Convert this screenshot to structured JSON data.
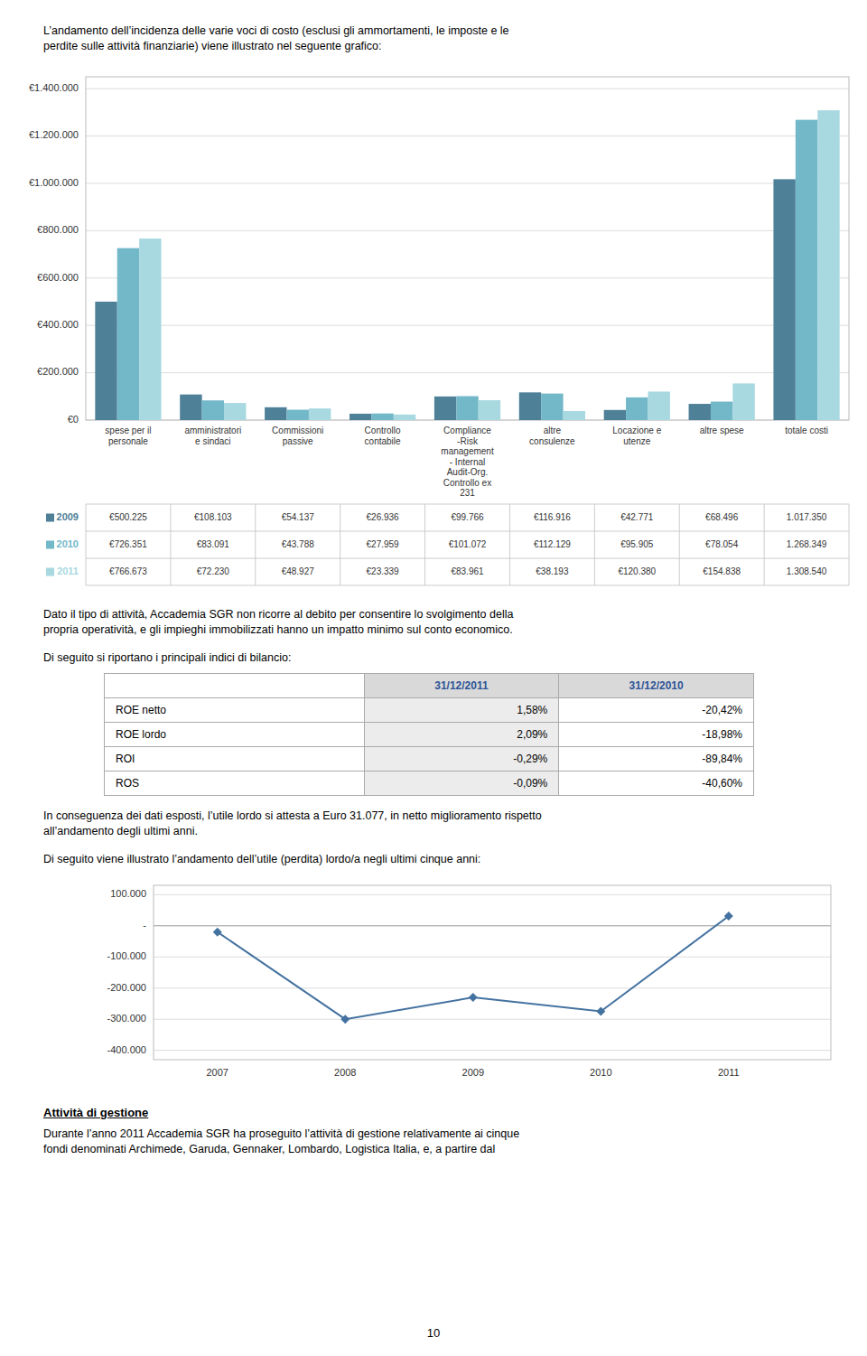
{
  "chart_data": [
    {
      "type": "bar",
      "categories": [
        "spese per il\npersonale",
        "amministratori\ne sindaci",
        "Commissioni\npassive",
        "Controllo\ncontabile",
        "Compliance\n-Risk\nmanagement\n- Internal\nAudit-Org.\nControllo ex\n231",
        "altre\nconsulenze",
        "Locazione e\nutenze",
        "altre spese",
        "totale costi"
      ],
      "series": [
        {
          "name": "2009",
          "color": "#4e8098",
          "values": [
            500225,
            108103,
            54137,
            26936,
            99766,
            116916,
            42771,
            68496,
            1017350
          ],
          "value_labels": [
            "€500.225",
            "€108.103",
            "€54.137",
            "€26.936",
            "€99.766",
            "€116.916",
            "€42.771",
            "€68.496",
            "1.017.350"
          ]
        },
        {
          "name": "2010",
          "color": "#72b8c8",
          "values": [
            726351,
            83091,
            43788,
            27959,
            101072,
            112129,
            95905,
            78054,
            1268349
          ],
          "value_labels": [
            "€726.351",
            "€83.091",
            "€43.788",
            "€27.959",
            "€101.072",
            "€112.129",
            "€95.905",
            "€78.054",
            "1.268.349"
          ]
        },
        {
          "name": "2011",
          "color": "#a8d8e0",
          "values": [
            766673,
            72230,
            48927,
            23339,
            83961,
            38193,
            120380,
            154838,
            1308540
          ],
          "value_labels": [
            "€766.673",
            "€72.230",
            "€48.927",
            "€23.339",
            "€83.961",
            "€38.193",
            "€120.380",
            "€154.838",
            "1.308.540"
          ]
        }
      ],
      "ylim": [
        0,
        1450000
      ],
      "yticks": [
        {
          "value": 0,
          "label": "€0"
        },
        {
          "value": 200000,
          "label": "€200.000"
        },
        {
          "value": 400000,
          "label": "€400.000"
        },
        {
          "value": 600000,
          "label": "€600.000"
        },
        {
          "value": 800000,
          "label": "€800.000"
        },
        {
          "value": 1000000,
          "label": "€1.000.000"
        },
        {
          "value": 1200000,
          "label": "€1.200.000"
        },
        {
          "value": 1400000,
          "label": "€1.400.000"
        }
      ],
      "grid": true
    },
    {
      "type": "line",
      "x": [
        2007,
        2008,
        2009,
        2010,
        2011
      ],
      "values": [
        -20000,
        -300000,
        -230000,
        -275000,
        31077
      ],
      "color": "#4472a0",
      "marker": "diamond",
      "xlim": [
        2006.5,
        2011.8
      ],
      "xticks": [
        2007,
        2008,
        2009,
        2010,
        2011
      ],
      "ylim": [
        -430000,
        130000
      ],
      "yticks": [
        {
          "value": 100000,
          "label": "100.000"
        },
        {
          "value": 0,
          "label": "-"
        },
        {
          "value": -100000,
          "label": "-100.000"
        },
        {
          "value": -200000,
          "label": "-200.000"
        },
        {
          "value": -300000,
          "label": "-300.000"
        },
        {
          "value": -400000,
          "label": "-400.000"
        }
      ],
      "grid": true
    }
  ],
  "page": {
    "intro": "L’andamento dell’incidenza delle varie voci di costo (esclusi gli ammortamenti, le imposte e le\nperdite sulle attività finanziarie) viene illustrato nel seguente grafico:",
    "middle": "Dato il tipo di attività, Accademia SGR non ricorre al debito per consentire lo svolgimento della\npropria operatività, e gli impieghi immobilizzati hanno un impatto minimo sul conto economico.",
    "table_title": "Di seguito si riportano i principali indici di bilancio:",
    "lower1": "In conseguenza dei dati esposti, l’utile lordo si attesta a Euro 31.077, in netto miglioramento rispetto\nall’andamento degli ultimi anni.",
    "lower2": "Di seguito viene illustrato l’andamento dell’utile (perdita) lordo/a negli ultimi cinque anni:",
    "heading": "Attività di gestione",
    "closing": "Durante l’anno 2011 Accademia SGR ha proseguito l’attività di gestione relativamente ai cinque\nfondi denominati Archimede, Garuda, Gennaker, Lombardo, Logistica Italia, e, a partire dal",
    "page_number": "10"
  },
  "indices_table": {
    "columns": [
      "31/12/2011",
      "31/12/2010"
    ],
    "rows": [
      {
        "label": "ROE netto",
        "cells": [
          "1,58%",
          "-20,42%"
        ]
      },
      {
        "label": "ROE lordo",
        "cells": [
          "2,09%",
          "-18,98%"
        ]
      },
      {
        "label": "ROI",
        "cells": [
          "-0,29%",
          "-89,84%"
        ]
      },
      {
        "label": "ROS",
        "cells": [
          "-0,09%",
          "-40,60%"
        ]
      }
    ]
  }
}
